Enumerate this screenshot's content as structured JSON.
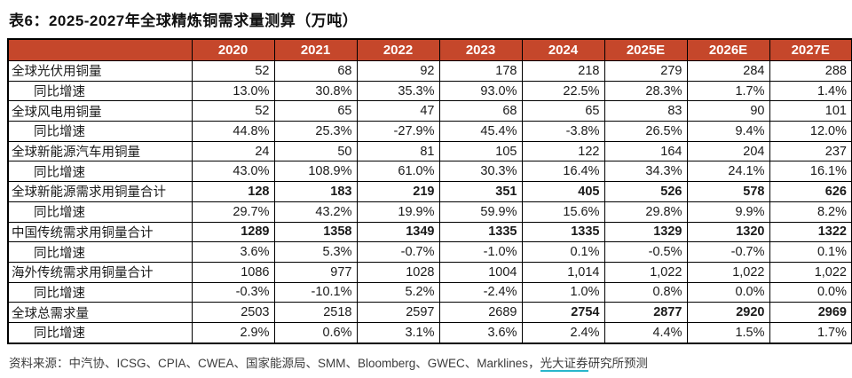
{
  "title": "表6：2025-2027年全球精炼铜需求量测算（万吨）",
  "colors": {
    "header_bg": "#C5472B",
    "header_text": "#FFFFFF",
    "border": "#000000",
    "link_underline": "#29B7CB"
  },
  "table": {
    "header": [
      "",
      "2020",
      "2021",
      "2022",
      "2023",
      "2024",
      "2025E",
      "2026E",
      "2027E"
    ],
    "rows": [
      {
        "label": "全球光伏用铜量",
        "indent": false,
        "values": [
          "52",
          "68",
          "92",
          "178",
          "218",
          "279",
          "284",
          "288"
        ],
        "bold": [
          false,
          false,
          false,
          false,
          false,
          false,
          false,
          false
        ]
      },
      {
        "label": "同比增速",
        "indent": true,
        "values": [
          "13.0%",
          "30.8%",
          "35.3%",
          "93.0%",
          "22.5%",
          "28.3%",
          "1.7%",
          "1.4%"
        ],
        "bold": [
          false,
          false,
          false,
          false,
          false,
          false,
          false,
          false
        ]
      },
      {
        "label": "全球风电用铜量",
        "indent": false,
        "values": [
          "52",
          "65",
          "47",
          "68",
          "65",
          "83",
          "90",
          "101"
        ],
        "bold": [
          false,
          false,
          false,
          false,
          false,
          false,
          false,
          false
        ]
      },
      {
        "label": "同比增速",
        "indent": true,
        "values": [
          "44.8%",
          "25.3%",
          "-27.9%",
          "45.4%",
          "-3.8%",
          "26.5%",
          "9.4%",
          "12.0%"
        ],
        "bold": [
          false,
          false,
          false,
          false,
          false,
          false,
          false,
          false
        ]
      },
      {
        "label": "全球新能源汽车用铜量",
        "indent": false,
        "values": [
          "24",
          "50",
          "81",
          "105",
          "122",
          "164",
          "204",
          "237"
        ],
        "bold": [
          false,
          false,
          false,
          false,
          false,
          false,
          false,
          false
        ]
      },
      {
        "label": "同比增速",
        "indent": true,
        "values": [
          "43.0%",
          "108.9%",
          "61.0%",
          "30.3%",
          "16.4%",
          "34.3%",
          "24.1%",
          "16.1%"
        ],
        "bold": [
          false,
          false,
          false,
          false,
          false,
          false,
          false,
          false
        ]
      },
      {
        "label": "全球新能源需求用铜量合计",
        "indent": false,
        "values": [
          "128",
          "183",
          "219",
          "351",
          "405",
          "526",
          "578",
          "626"
        ],
        "bold": [
          true,
          true,
          true,
          true,
          true,
          true,
          true,
          true
        ]
      },
      {
        "label": "同比增速",
        "indent": true,
        "values": [
          "29.7%",
          "43.2%",
          "19.9%",
          "59.9%",
          "15.6%",
          "29.8%",
          "9.9%",
          "8.2%"
        ],
        "bold": [
          false,
          false,
          false,
          false,
          false,
          false,
          false,
          false
        ]
      },
      {
        "label": "中国传统需求用铜量合计",
        "indent": false,
        "values": [
          "1289",
          "1358",
          "1349",
          "1335",
          "1335",
          "1329",
          "1320",
          "1322"
        ],
        "bold": [
          true,
          true,
          true,
          true,
          true,
          true,
          true,
          true
        ]
      },
      {
        "label": "同比增速",
        "indent": true,
        "values": [
          "3.6%",
          "5.3%",
          "-0.7%",
          "-1.0%",
          "0.1%",
          "-0.5%",
          "-0.7%",
          "0.1%"
        ],
        "bold": [
          false,
          false,
          false,
          false,
          false,
          false,
          false,
          false
        ]
      },
      {
        "label": "海外传统需求用铜量合计",
        "indent": false,
        "values": [
          "1086",
          "977",
          "1028",
          "1004",
          "1,014",
          "1,022",
          "1,022",
          "1,022"
        ],
        "bold": [
          false,
          false,
          false,
          false,
          false,
          false,
          false,
          false
        ]
      },
      {
        "label": "同比增速",
        "indent": true,
        "values": [
          "-0.3%",
          "-10.1%",
          "5.2%",
          "-2.4%",
          "1.0%",
          "0.8%",
          "0.0%",
          "0.0%"
        ],
        "bold": [
          false,
          false,
          false,
          false,
          false,
          false,
          false,
          false
        ]
      },
      {
        "label": "全球总需求量",
        "indent": false,
        "values": [
          "2503",
          "2518",
          "2597",
          "2689",
          "2754",
          "2877",
          "2920",
          "2969"
        ],
        "bold": [
          false,
          false,
          false,
          false,
          true,
          true,
          true,
          true
        ]
      },
      {
        "label": "同比增速",
        "indent": true,
        "values": [
          "2.9%",
          "0.6%",
          "3.1%",
          "3.6%",
          "2.4%",
          "4.4%",
          "1.5%",
          "1.7%"
        ],
        "bold": [
          false,
          false,
          false,
          false,
          false,
          false,
          false,
          false
        ]
      }
    ]
  },
  "footer": {
    "prefix": "资料来源：中汽协、ICSG、CPIA、CWEA、国家能源局、SMM、Bloomberg、GWEC、Marklines，",
    "link": "光大证券",
    "suffix": "研究所预测"
  }
}
